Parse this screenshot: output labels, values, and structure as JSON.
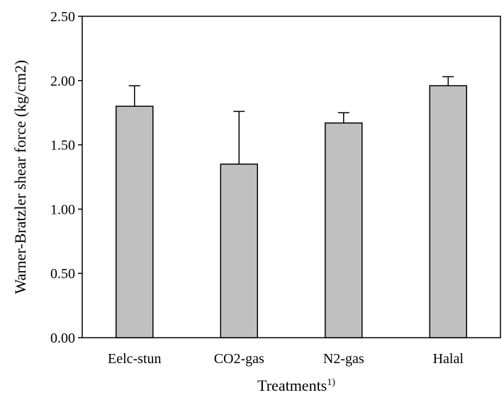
{
  "chart_data": {
    "type": "bar",
    "categories": [
      "Eelc-stun",
      "CO2-gas",
      "N2-gas",
      "Halal"
    ],
    "values": [
      1.8,
      1.35,
      1.67,
      1.96
    ],
    "error_upper": [
      0.16,
      0.41,
      0.08,
      0.07
    ],
    "ylim": [
      0,
      2.5
    ],
    "yticks": [
      0,
      0.5,
      1.0,
      1.5,
      2.0,
      2.5
    ],
    "ytick_labels": [
      "0.00",
      "0.50",
      "1.00",
      "1.50",
      "2.00",
      "2.50"
    ],
    "xlabel": "Treatments",
    "xlabel_superscript": "1)",
    "ylabel": "Warner-Bratzler shear force (kg/cm2)",
    "grid": false,
    "bar_color": "#c0c0c0"
  }
}
